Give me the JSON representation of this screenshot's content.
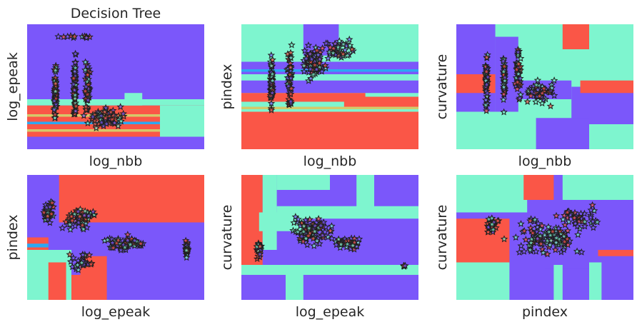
{
  "figure": {
    "title": "Decision Tree",
    "colors": {
      "purple": "#7b57fa",
      "teal": "#7ef5cf",
      "red": "#fa5647",
      "cyan": "#2ca8f2",
      "yellow": "#d4c96a",
      "marker_edge": "#1f1f1f"
    }
  },
  "chart_data": [
    {
      "type": "scatter",
      "title": "Decision Tree",
      "xlabel": "log_nbb",
      "ylabel": "log_epeak",
      "grid": false,
      "marker": "star",
      "background": "decision-regions"
    },
    {
      "type": "scatter",
      "title": "",
      "xlabel": "log_nbb",
      "ylabel": "pindex",
      "grid": false,
      "marker": "star",
      "background": "decision-regions"
    },
    {
      "type": "scatter",
      "title": "",
      "xlabel": "log_nbb",
      "ylabel": "curvature",
      "grid": false,
      "marker": "star",
      "background": "decision-regions"
    },
    {
      "type": "scatter",
      "title": "",
      "xlabel": "log_epeak",
      "ylabel": "pindex",
      "grid": false,
      "marker": "star",
      "background": "decision-regions"
    },
    {
      "type": "scatter",
      "title": "",
      "xlabel": "log_epeak",
      "ylabel": "curvature",
      "grid": false,
      "marker": "star",
      "background": "decision-regions"
    },
    {
      "type": "scatter",
      "title": "",
      "xlabel": "pindex",
      "ylabel": "curvature",
      "grid": false,
      "marker": "star",
      "background": "decision-regions"
    }
  ]
}
